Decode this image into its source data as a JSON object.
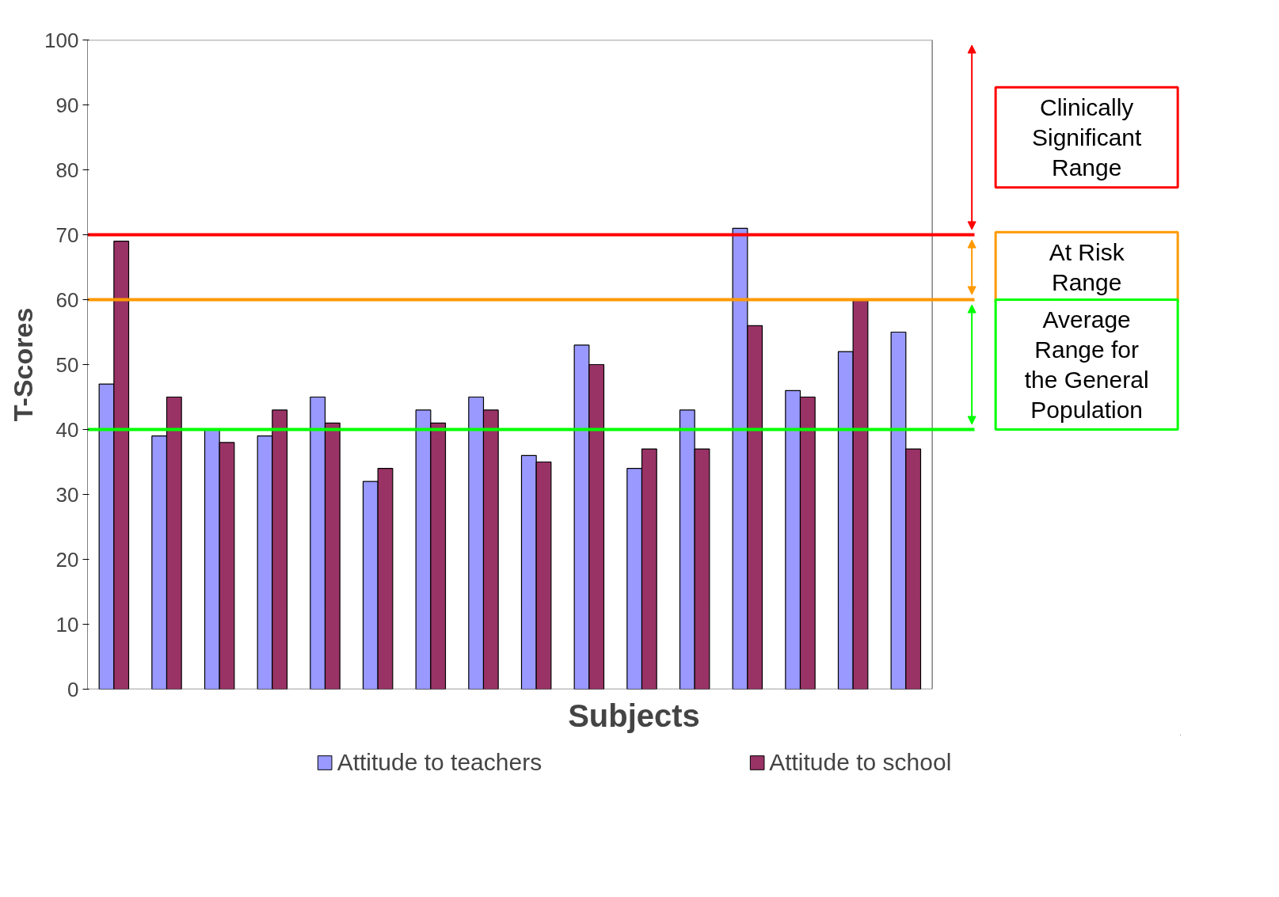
{
  "chart_data": {
    "type": "bar",
    "xlabel": "Subjects",
    "ylabel": "T-Scores",
    "categories": [
      null,
      null,
      null,
      null,
      null,
      null,
      null,
      null,
      null,
      null,
      null,
      null,
      null,
      null,
      null,
      null
    ],
    "series": [
      {
        "name": "Attitude to teachers",
        "color": "#9999ff",
        "values": [
          47,
          39,
          40,
          39,
          45,
          32,
          43,
          45,
          36,
          53,
          34,
          43,
          71,
          46,
          52,
          55
        ]
      },
      {
        "name": "Attitude to school",
        "color": "#993366",
        "values": [
          69,
          45,
          38,
          43,
          41,
          34,
          41,
          43,
          35,
          50,
          37,
          37,
          56,
          45,
          60,
          37
        ]
      }
    ],
    "ylim": [
      0,
      100
    ],
    "yticks": [
      0,
      10,
      20,
      30,
      40,
      50,
      60,
      70,
      80,
      90,
      100
    ],
    "ref_lines": [
      {
        "axis": "y",
        "value": 70,
        "color": "#ff0000"
      },
      {
        "axis": "y",
        "value": 60,
        "color": "#ff9900"
      },
      {
        "axis": "y",
        "value": 40,
        "color": "#00ff00"
      }
    ],
    "annotations": [
      "Clinically Significant Range",
      "At Risk Range",
      "Average Range for the General Population"
    ],
    "grid": false,
    "legend": "bottom"
  }
}
